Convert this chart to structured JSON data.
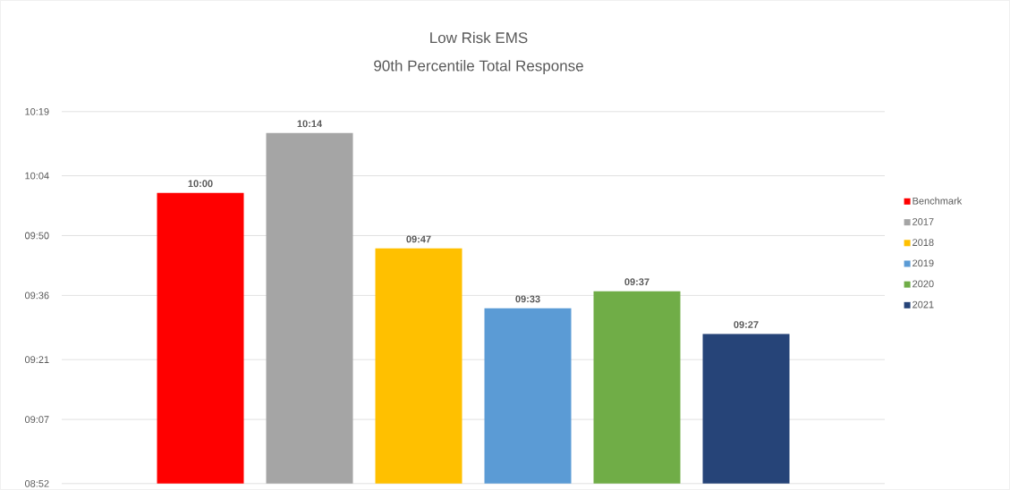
{
  "chart_data": {
    "type": "bar",
    "title": "Low Risk EMS",
    "subtitle": "90th Percentile Total Response",
    "categories": [
      null
    ],
    "series": [
      {
        "name": "Benchmark",
        "color": "#ff0000",
        "values": [
          600
        ],
        "value_labels": [
          "10:00"
        ]
      },
      {
        "name": "2017",
        "color": "#a5a5a5",
        "values": [
          614
        ],
        "value_labels": [
          "10:14"
        ]
      },
      {
        "name": "2018",
        "color": "#ffc000",
        "values": [
          587
        ],
        "value_labels": [
          "09:47"
        ]
      },
      {
        "name": "2019",
        "color": "#5b9bd5",
        "values": [
          573
        ],
        "value_labels": [
          "09:33"
        ]
      },
      {
        "name": "2020",
        "color": "#70ad47",
        "values": [
          577
        ],
        "value_labels": [
          "09:37"
        ]
      },
      {
        "name": "2021",
        "color": "#264478",
        "values": [
          567
        ],
        "value_labels": [
          "09:27"
        ]
      }
    ],
    "ylim": [
      532,
      619
    ],
    "yticks": [
      {
        "value": 532,
        "label": "08:52"
      },
      {
        "value": 547,
        "label": "09:07"
      },
      {
        "value": 561,
        "label": "09:21"
      },
      {
        "value": 576,
        "label": "09:36"
      },
      {
        "value": 590,
        "label": "09:50"
      },
      {
        "value": 604,
        "label": "10:04"
      },
      {
        "value": 619,
        "label": "10:19"
      }
    ],
    "grid": "y",
    "legend": "right"
  }
}
